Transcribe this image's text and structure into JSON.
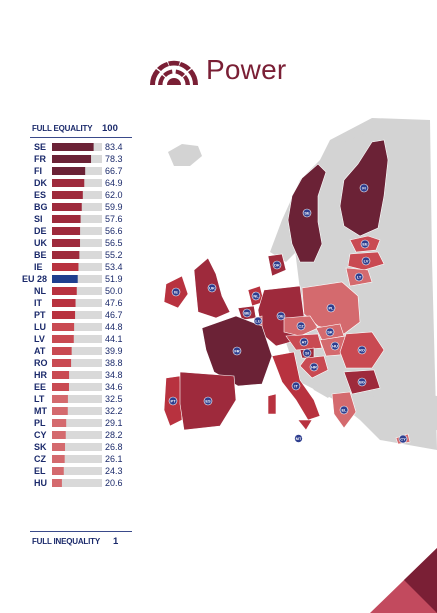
{
  "title": "Power",
  "colors": {
    "title": "#7a1f35",
    "eu_bar": "#1f3f8f",
    "bar_bg": "#d9d9d9",
    "map_land_non_eu": "#d3d3d3",
    "map_sea": "#ffffff",
    "map_label_circle": "#2f3f8f",
    "corner_accent_dark": "#7a1f35",
    "corner_accent_light": "#c24a5e"
  },
  "header_top": {
    "label": "FULL EQUALITY",
    "value": "100"
  },
  "header_bottom": {
    "label": "FULL INEQUALITY",
    "value": "1"
  },
  "chart_data": {
    "type": "bar",
    "orientation": "horizontal",
    "xlim": [
      1,
      100
    ],
    "categories": [
      "SE",
      "FR",
      "FI",
      "DK",
      "ES",
      "BG",
      "SI",
      "DE",
      "UK",
      "BE",
      "IE",
      "EU 28",
      "NL",
      "IT",
      "PT",
      "LU",
      "LV",
      "AT",
      "RO",
      "HR",
      "EE",
      "LT",
      "MT",
      "PL",
      "CY",
      "SK",
      "CZ",
      "EL",
      "HU"
    ],
    "values": [
      83.4,
      78.3,
      66.7,
      64.9,
      62.0,
      59.9,
      57.6,
      56.6,
      56.5,
      55.2,
      53.4,
      51.9,
      50.0,
      47.6,
      46.7,
      44.8,
      44.1,
      39.9,
      38.8,
      34.8,
      34.6,
      32.5,
      32.2,
      29.1,
      28.2,
      26.8,
      26.1,
      24.3,
      20.6
    ],
    "value_labels": [
      "83.4",
      "78.3",
      "66.7",
      "64.9",
      "62.0",
      "59.9",
      "57.6",
      "56.6",
      "56.5",
      "55.2",
      "53.4",
      "51.9",
      "50.0",
      "47.6",
      "46.7",
      "44.8",
      "44.1",
      "39.9",
      "38.8",
      "34.8",
      "34.6",
      "32.5",
      "32.2",
      "29.1",
      "28.2",
      "26.8",
      "26.1",
      "24.3",
      "20.6"
    ],
    "highlight": "EU 28",
    "grid": false,
    "legend": "none"
  },
  "map": {
    "labels": [
      "SE",
      "FI",
      "EE",
      "LV",
      "LT",
      "DK",
      "PL",
      "IE",
      "UK",
      "NL",
      "BE",
      "DE",
      "LU",
      "CZ",
      "SK",
      "FR",
      "AT",
      "HU",
      "SI",
      "HR",
      "RO",
      "BG",
      "IT",
      "PT",
      "ES",
      "EL",
      "MT",
      "CY"
    ]
  }
}
